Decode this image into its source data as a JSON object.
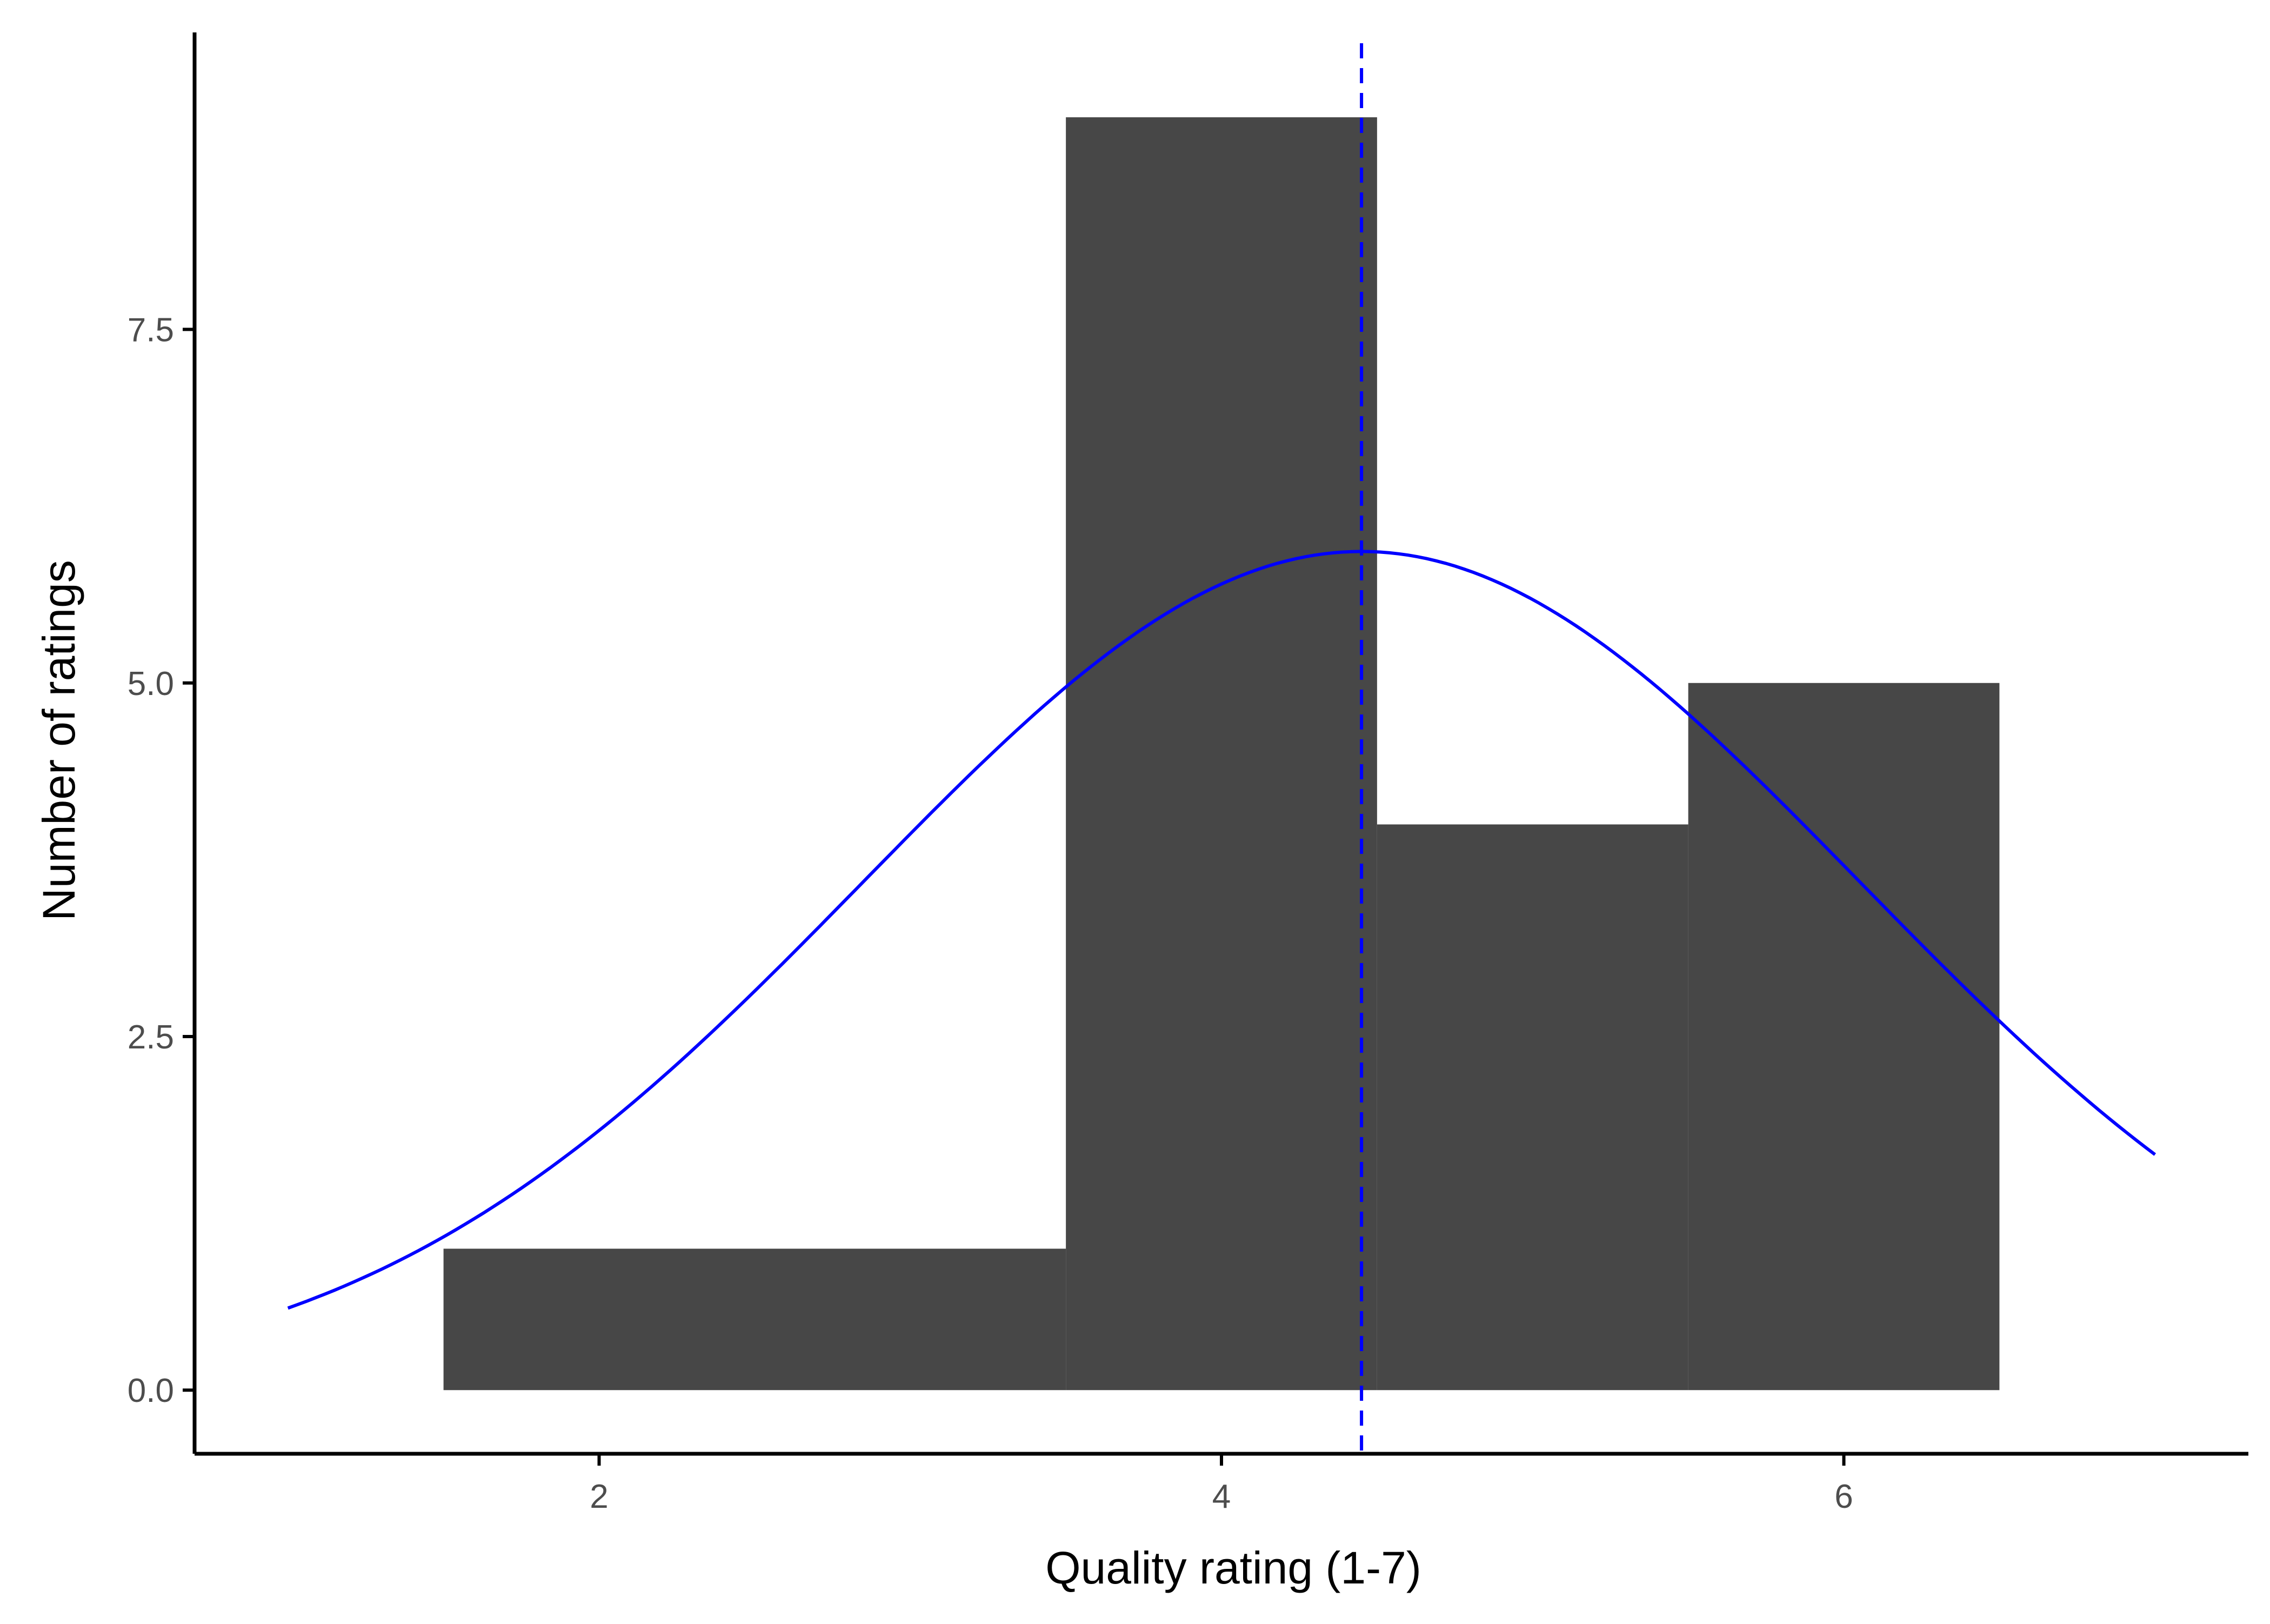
{
  "chart_data": {
    "type": "bar",
    "subtype": "histogram",
    "xlabel": "Quality rating (1-7)",
    "ylabel": "Number of ratings",
    "xlim": [
      0.7,
      7.3
    ],
    "ylim": [
      -0.45,
      9.6
    ],
    "x_ticks": [
      2,
      4,
      6
    ],
    "x_tick_labels": [
      "2",
      "4",
      "6"
    ],
    "y_ticks": [
      0,
      2.5,
      5,
      7.5
    ],
    "y_tick_labels": [
      "0.0",
      "2.5",
      "5.0",
      "7.5"
    ],
    "bins": [
      {
        "x_start": 1.5,
        "x_end": 3.5,
        "count": 1
      },
      {
        "x_start": 3.5,
        "x_end": 4.5,
        "count": 9
      },
      {
        "x_start": 4.5,
        "x_end": 5.5,
        "count": 4
      },
      {
        "x_start": 5.5,
        "x_end": 6.5,
        "count": 5
      }
    ],
    "bar_color": "#474747",
    "mean_line": {
      "x": 4.45,
      "style": "dashed",
      "color": "#0000ff"
    },
    "density_curve": {
      "mean": 4.45,
      "sd": 1.6,
      "peak_count": 5.93,
      "x_range": [
        1.0,
        7.0
      ],
      "color": "#0000ff"
    },
    "grid": false,
    "legend": "none"
  }
}
